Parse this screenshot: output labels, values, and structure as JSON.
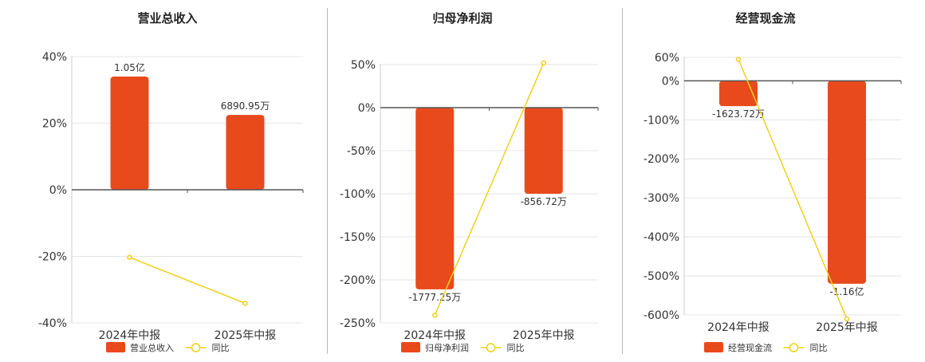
{
  "series_names": {
    "bar_legend_2": "同比"
  },
  "colors": {
    "bar": "#e84a1c",
    "line": "#f1d01c",
    "axis": "#555555",
    "grid": "#e4e4e4",
    "text": "#333333"
  },
  "chart_data": [
    {
      "type": "bar",
      "title": "营业总收入",
      "categories": [
        "2024年中报",
        "2025年中报"
      ],
      "series": [
        {
          "name": "营业总收入",
          "kind": "bar",
          "values_pct_axis": [
            34,
            22.5
          ],
          "labels": [
            "1.05亿",
            "6890.95万"
          ]
        },
        {
          "name": "同比",
          "kind": "line",
          "values": [
            -20.3,
            -34.1
          ]
        }
      ],
      "y_ticks": [
        40,
        20,
        0,
        -20,
        -40
      ],
      "ylim": [
        -40,
        40
      ],
      "tick_suffix": "%"
    },
    {
      "type": "bar",
      "title": "归母净利润",
      "categories": [
        "2024年中报",
        "2025年中报"
      ],
      "series": [
        {
          "name": "归母净利润",
          "kind": "bar",
          "values_pct_axis": [
            -211,
            -100
          ],
          "labels": [
            "-1777.25万",
            "-856.72万"
          ]
        },
        {
          "name": "同比",
          "kind": "line",
          "values": [
            -241,
            52
          ]
        }
      ],
      "y_ticks": [
        50,
        0,
        -50,
        -100,
        -150,
        -200,
        -250
      ],
      "ylim": [
        -250,
        60
      ],
      "tick_suffix": "%"
    },
    {
      "type": "bar",
      "title": "经营现金流",
      "categories": [
        "2024年中报",
        "2025年中报"
      ],
      "series": [
        {
          "name": "经营现金流",
          "kind": "bar",
          "values_pct_axis": [
            -65,
            -520
          ],
          "labels": [
            "-1623.72万",
            "-1.16亿"
          ]
        },
        {
          "name": "同比",
          "kind": "line",
          "values": [
            55,
            -610
          ]
        }
      ],
      "y_ticks": [
        60,
        0,
        -100,
        -200,
        -300,
        -400,
        -500,
        -600
      ],
      "ylim": [
        -610,
        60
      ],
      "tick_suffix": "%"
    }
  ]
}
